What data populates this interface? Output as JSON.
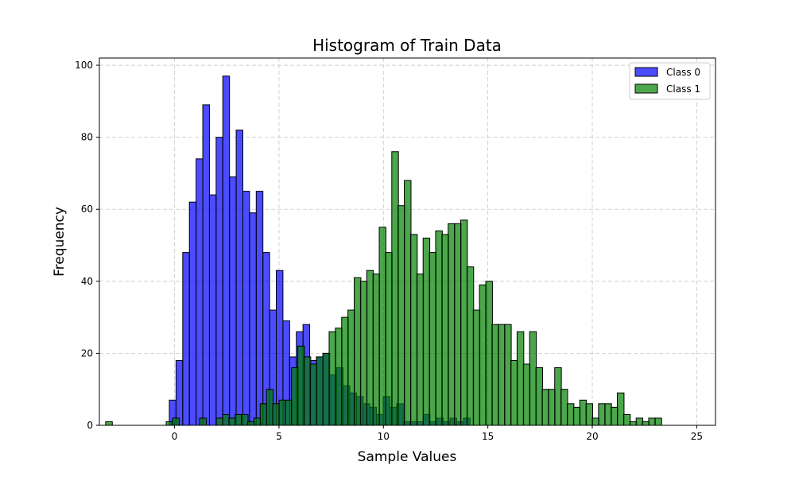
{
  "chart_data": {
    "type": "bar",
    "title": "Histogram of Train Data",
    "xlabel": "Sample Values",
    "ylabel": "Frequency",
    "xlim": [
      -3.6,
      25.9
    ],
    "ylim": [
      0,
      102
    ],
    "xticks": [
      0,
      5,
      10,
      15,
      20,
      25
    ],
    "yticks": [
      0,
      20,
      40,
      60,
      80,
      100
    ],
    "grid": true,
    "legend_position": "top-right",
    "bin_width": 0.32,
    "series": [
      {
        "name": "Class 0",
        "color": "#0000ff",
        "opacity": 0.7,
        "bins": [
          [
            -0.25,
            7
          ],
          [
            0.07,
            18
          ],
          [
            0.39,
            48
          ],
          [
            0.71,
            62
          ],
          [
            1.03,
            74
          ],
          [
            1.35,
            89
          ],
          [
            1.67,
            64
          ],
          [
            1.99,
            80
          ],
          [
            2.31,
            97
          ],
          [
            2.63,
            69
          ],
          [
            2.95,
            82
          ],
          [
            3.27,
            65
          ],
          [
            3.59,
            59
          ],
          [
            3.91,
            65
          ],
          [
            4.23,
            48
          ],
          [
            4.55,
            32
          ],
          [
            4.87,
            43
          ],
          [
            5.19,
            29
          ],
          [
            5.51,
            19
          ],
          [
            5.83,
            26
          ],
          [
            6.15,
            28
          ],
          [
            6.47,
            18
          ],
          [
            6.79,
            19
          ],
          [
            7.11,
            20
          ],
          [
            7.43,
            14
          ],
          [
            7.75,
            16
          ],
          [
            8.07,
            11
          ],
          [
            8.39,
            9
          ],
          [
            8.71,
            8
          ],
          [
            9.03,
            6
          ],
          [
            9.35,
            5
          ],
          [
            9.67,
            3
          ],
          [
            9.99,
            8
          ],
          [
            10.31,
            5
          ],
          [
            10.63,
            6
          ],
          [
            10.95,
            1
          ],
          [
            11.27,
            1
          ],
          [
            11.59,
            1
          ],
          [
            11.91,
            3
          ],
          [
            12.23,
            1
          ],
          [
            12.55,
            2
          ],
          [
            12.87,
            1
          ],
          [
            13.19,
            2
          ],
          [
            13.51,
            1
          ],
          [
            13.83,
            2
          ]
        ]
      },
      {
        "name": "Class 1",
        "color": "#008000",
        "opacity": 0.7,
        "bins": [
          [
            -3.3,
            1
          ],
          [
            -0.4,
            1
          ],
          [
            -0.1,
            2
          ],
          [
            1.2,
            2
          ],
          [
            2.0,
            2
          ],
          [
            2.3,
            3
          ],
          [
            2.6,
            2
          ],
          [
            2.9,
            3
          ],
          [
            3.2,
            3
          ],
          [
            3.5,
            1
          ],
          [
            3.8,
            2
          ],
          [
            4.1,
            6
          ],
          [
            4.4,
            10
          ],
          [
            4.7,
            6
          ],
          [
            5.0,
            7
          ],
          [
            5.3,
            7
          ],
          [
            5.6,
            16
          ],
          [
            5.9,
            22
          ],
          [
            6.2,
            19
          ],
          [
            6.5,
            17
          ],
          [
            6.8,
            19
          ],
          [
            7.1,
            20
          ],
          [
            7.4,
            26
          ],
          [
            7.7,
            27
          ],
          [
            8.0,
            30
          ],
          [
            8.3,
            32
          ],
          [
            8.6,
            41
          ],
          [
            8.9,
            40
          ],
          [
            9.2,
            43
          ],
          [
            9.5,
            42
          ],
          [
            9.8,
            55
          ],
          [
            10.1,
            48
          ],
          [
            10.4,
            76
          ],
          [
            10.7,
            61
          ],
          [
            11.0,
            68
          ],
          [
            11.3,
            53
          ],
          [
            11.6,
            42
          ],
          [
            11.9,
            52
          ],
          [
            12.2,
            48
          ],
          [
            12.5,
            54
          ],
          [
            12.8,
            53
          ],
          [
            13.1,
            56
          ],
          [
            13.4,
            56
          ],
          [
            13.7,
            57
          ],
          [
            14.0,
            44
          ],
          [
            14.3,
            32
          ],
          [
            14.6,
            39
          ],
          [
            14.9,
            40
          ],
          [
            15.2,
            28
          ],
          [
            15.5,
            28
          ],
          [
            15.8,
            28
          ],
          [
            16.1,
            18
          ],
          [
            16.4,
            26
          ],
          [
            16.7,
            17
          ],
          [
            17.0,
            26
          ],
          [
            17.3,
            16
          ],
          [
            17.6,
            10
          ],
          [
            17.9,
            10
          ],
          [
            18.2,
            16
          ],
          [
            18.5,
            10
          ],
          [
            18.8,
            6
          ],
          [
            19.1,
            5
          ],
          [
            19.4,
            7
          ],
          [
            19.7,
            6
          ],
          [
            20.0,
            2
          ],
          [
            20.3,
            6
          ],
          [
            20.6,
            6
          ],
          [
            20.9,
            5
          ],
          [
            21.2,
            9
          ],
          [
            21.5,
            3
          ],
          [
            21.8,
            1
          ],
          [
            22.1,
            2
          ],
          [
            22.4,
            1
          ],
          [
            22.7,
            2
          ],
          [
            23.0,
            2
          ]
        ]
      }
    ]
  }
}
